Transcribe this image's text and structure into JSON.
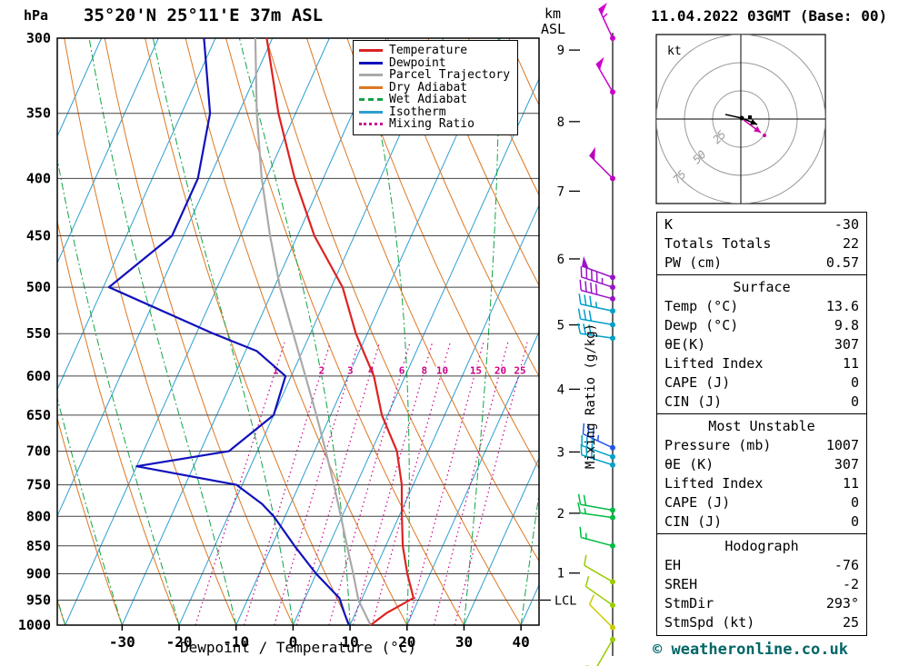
{
  "header": {
    "station": "35°20'N 25°11'E 37m ASL",
    "datetime": "11.04.2022 03GMT (Base: 00)",
    "pressure_unit": "hPa",
    "km_unit": "km",
    "asl": "ASL"
  },
  "axes": {
    "xlabel": "Dewpoint / Temperature (°C)",
    "x_ticks": [
      -30,
      -20,
      -10,
      0,
      10,
      20,
      30,
      40
    ],
    "pressure_ticks": [
      300,
      350,
      400,
      450,
      500,
      550,
      600,
      650,
      700,
      750,
      800,
      850,
      900,
      950,
      1000
    ],
    "km_ticks": [
      1,
      2,
      3,
      4,
      5,
      6,
      7,
      8,
      9
    ],
    "right_axis_label": "Mixing Ratio (g/kg)",
    "lcl_label": "LCL"
  },
  "legend": [
    {
      "label": "Temperature",
      "color": "#dd2222",
      "style": "solid"
    },
    {
      "label": "Dewpoint",
      "color": "#1111bb",
      "style": "solid"
    },
    {
      "label": "Parcel Trajectory",
      "color": "#aaaaaa",
      "style": "solid"
    },
    {
      "label": "Dry Adiabat",
      "color": "#dd7722",
      "style": "solid"
    },
    {
      "label": "Wet Adiabat",
      "color": "#11a344",
      "style": "dashed"
    },
    {
      "label": "Isotherm",
      "color": "#2d9ed1",
      "style": "solid"
    },
    {
      "label": "Mixing Ratio",
      "color": "#cc0088",
      "style": "dotted"
    }
  ],
  "chart_data": {
    "type": "skew_t_log_p",
    "pressure_axis": {
      "min": 300,
      "max": 1000,
      "scale": "log"
    },
    "temp_axis_ticks_c": [
      -30,
      -20,
      -10,
      0,
      10,
      20,
      30,
      40
    ],
    "isotherm_step_c": 10,
    "mixing_ratio_lines_gkg": [
      1,
      2,
      3,
      4,
      6,
      8,
      10,
      15,
      20,
      25
    ],
    "lcl_pressure_hpa": 950,
    "temperature_profile": {
      "pressure_hpa": [
        1000,
        975,
        946,
        900,
        850,
        800,
        750,
        700,
        650,
        600,
        550,
        500,
        450,
        400,
        350,
        300
      ],
      "temp_c": [
        13.6,
        15.5,
        19.0,
        16.0,
        13.0,
        10.5,
        8.0,
        4.5,
        -1.0,
        -5.5,
        -12.0,
        -18.0,
        -27.0,
        -35.0,
        -43.0,
        -51.0
      ]
    },
    "dewpoint_profile": {
      "pressure_hpa": [
        1000,
        975,
        946,
        900,
        850,
        800,
        780,
        750,
        722,
        700,
        650,
        600,
        570,
        550,
        500,
        450,
        400,
        350,
        300
      ],
      "dewpoint_c": [
        9.8,
        8.0,
        6.0,
        0.0,
        -6.0,
        -12.0,
        -15.0,
        -21.0,
        -40.0,
        -25.0,
        -20.0,
        -21.0,
        -28.0,
        -37.0,
        -59.0,
        -52.0,
        -52.0,
        -55.0,
        -62.0
      ]
    },
    "parcel_trajectory": {
      "pressure_hpa": [
        1000,
        950,
        900,
        850,
        800,
        750,
        700,
        650,
        600,
        550,
        500,
        450,
        400,
        350,
        300
      ],
      "temp_c": [
        13.6,
        9.5,
        6.5,
        3.2,
        -0.2,
        -3.9,
        -8.0,
        -12.5,
        -17.5,
        -23.0,
        -29.0,
        -34.8,
        -40.8,
        -46.8,
        -53.0
      ]
    },
    "wind_barbs": [
      {
        "p": 300,
        "dir": 335,
        "kt": 55,
        "color": "#cc00cc"
      },
      {
        "p": 335,
        "dir": 330,
        "kt": 50,
        "color": "#cc00cc"
      },
      {
        "p": 400,
        "dir": 315,
        "kt": 50,
        "color": "#bb00bb"
      },
      {
        "p": 490,
        "dir": 290,
        "kt": 50,
        "color": "#9913c9"
      },
      {
        "p": 500,
        "dir": 288,
        "kt": 45,
        "color": "#9913c9"
      },
      {
        "p": 512,
        "dir": 285,
        "kt": 40,
        "color": "#9913c9"
      },
      {
        "p": 525,
        "dir": 282,
        "kt": 35,
        "color": "#00a0c8"
      },
      {
        "p": 540,
        "dir": 280,
        "kt": 30,
        "color": "#00a0c8"
      },
      {
        "p": 555,
        "dir": 278,
        "kt": 30,
        "color": "#00a0c8"
      },
      {
        "p": 695,
        "dir": 295,
        "kt": 35,
        "color": "#2255ee"
      },
      {
        "p": 708,
        "dir": 290,
        "kt": 30,
        "color": "#00a0c8"
      },
      {
        "p": 720,
        "dir": 288,
        "kt": 28,
        "color": "#00a0c8"
      },
      {
        "p": 790,
        "dir": 280,
        "kt": 18,
        "color": "#00bb44"
      },
      {
        "p": 802,
        "dir": 278,
        "kt": 15,
        "color": "#00bb44"
      },
      {
        "p": 850,
        "dir": 285,
        "kt": 15,
        "color": "#00bb44"
      },
      {
        "p": 915,
        "dir": 300,
        "kt": 12,
        "color": "#99cc00"
      },
      {
        "p": 960,
        "dir": 305,
        "kt": 10,
        "color": "#99cc00"
      },
      {
        "p": 1005,
        "dir": 315,
        "kt": 8,
        "color": "#cccc00"
      },
      {
        "p": 1030,
        "dir": 210,
        "kt": 10,
        "color": "#99cc00"
      }
    ]
  },
  "hodograph": {
    "unit_label": "kt",
    "rings_kt": [
      25,
      50,
      75
    ],
    "storm_dir_deg": 293,
    "storm_speed_kt": 25
  },
  "tables": {
    "indices": {
      "rows": [
        [
          "K",
          "-30"
        ],
        [
          "Totals Totals",
          "22"
        ],
        [
          "PW (cm)",
          "0.57"
        ]
      ]
    },
    "surface": {
      "title": "Surface",
      "rows": [
        [
          "Temp (°C)",
          "13.6"
        ],
        [
          "Dewp (°C)",
          "9.8"
        ],
        [
          "θE(K)",
          "307"
        ],
        [
          "Lifted Index",
          "11"
        ],
        [
          "CAPE (J)",
          "0"
        ],
        [
          "CIN (J)",
          "0"
        ]
      ]
    },
    "most_unstable": {
      "title": "Most Unstable",
      "rows": [
        [
          "Pressure (mb)",
          "1007"
        ],
        [
          "θE (K)",
          "307"
        ],
        [
          "Lifted Index",
          "11"
        ],
        [
          "CAPE (J)",
          "0"
        ],
        [
          "CIN (J)",
          "0"
        ]
      ]
    },
    "hodograph": {
      "title": "Hodograph",
      "rows": [
        [
          "EH",
          "-76"
        ],
        [
          "SREH",
          "-2"
        ],
        [
          "StmDir",
          "293°"
        ],
        [
          "StmSpd (kt)",
          "25"
        ]
      ]
    }
  },
  "footer": {
    "copyright": "© weatheronline.co.uk"
  },
  "colors": {
    "temperature": "#dd2222",
    "dewpoint": "#1111bb",
    "parcel": "#aaaaaa",
    "dry_adiabat": "#dd7722",
    "wet_adiabat": "#11a344",
    "isotherm": "#2d9ed1",
    "mixing_ratio": "#cc0088",
    "grid": "#444444",
    "copyright": "#006666"
  }
}
